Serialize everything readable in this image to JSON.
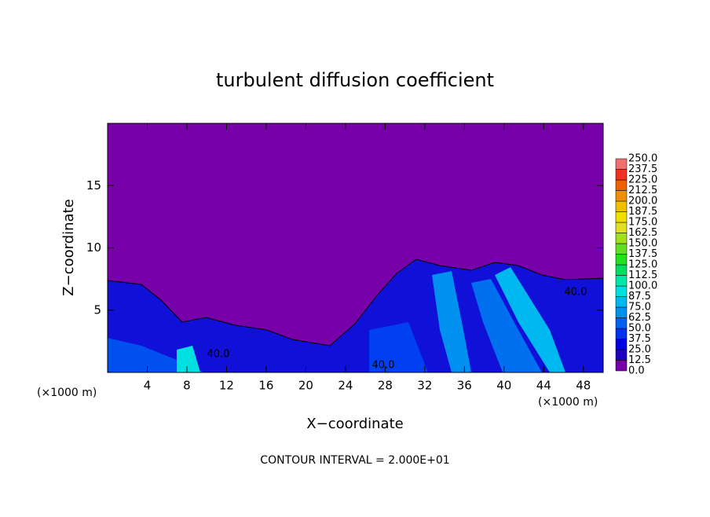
{
  "chart_data": {
    "type": "contour",
    "title": "turbulent diffusion coefficient",
    "x_label": "X−coordinate",
    "y_label": "Z−coordinate",
    "x_unit": "(×1000 m)",
    "y_unit": "(×1000 m)",
    "annotation": "CONTOUR INTERVAL = 2.000E+01",
    "contour_labels": [
      "40.0",
      "40.0",
      "40.0"
    ],
    "xlim": [
      0,
      50
    ],
    "xticks": [
      4,
      8,
      12,
      16,
      20,
      24,
      28,
      32,
      36,
      40,
      44,
      48
    ],
    "ylim": [
      0,
      20
    ],
    "yticks": [
      5,
      10,
      15
    ],
    "levels": [
      {
        "value": 0,
        "label": "0.0"
      },
      12.5,
      {
        "value": 25,
        "label": "25.0"
      },
      37.5,
      {
        "value": 50,
        "label": "50.0"
      },
      62.5,
      {
        "value": 75,
        "label": "75.0"
      },
      87.5,
      {
        "value": 100,
        "label": "100.0"
      },
      112.5,
      {
        "value": 125,
        "label": "125.0"
      },
      137.5,
      {
        "value": 150,
        "label": "150.0"
      },
      162.5,
      {
        "value": 175,
        "label": "175.0"
      },
      187.5,
      {
        "value": 200,
        "label": "200.0"
      },
      212.5,
      {
        "value": 225,
        "label": "225.0"
      },
      237.5,
      {
        "value": 250,
        "label": "250.0"
      }
    ],
    "level_colors": [
      "#7800a8",
      "#2000c0",
      "#0000e0",
      "#0030f0",
      "#0060f0",
      "#0090f0",
      "#00b8f0",
      "#00e0e0",
      "#00e8a8",
      "#00e060",
      "#20e020",
      "#60e020",
      "#a0e020",
      "#e0e020",
      "#f0e000",
      "#f0c000",
      "#f09000",
      "#f06000",
      "#f03020",
      "#f07070"
    ]
  }
}
